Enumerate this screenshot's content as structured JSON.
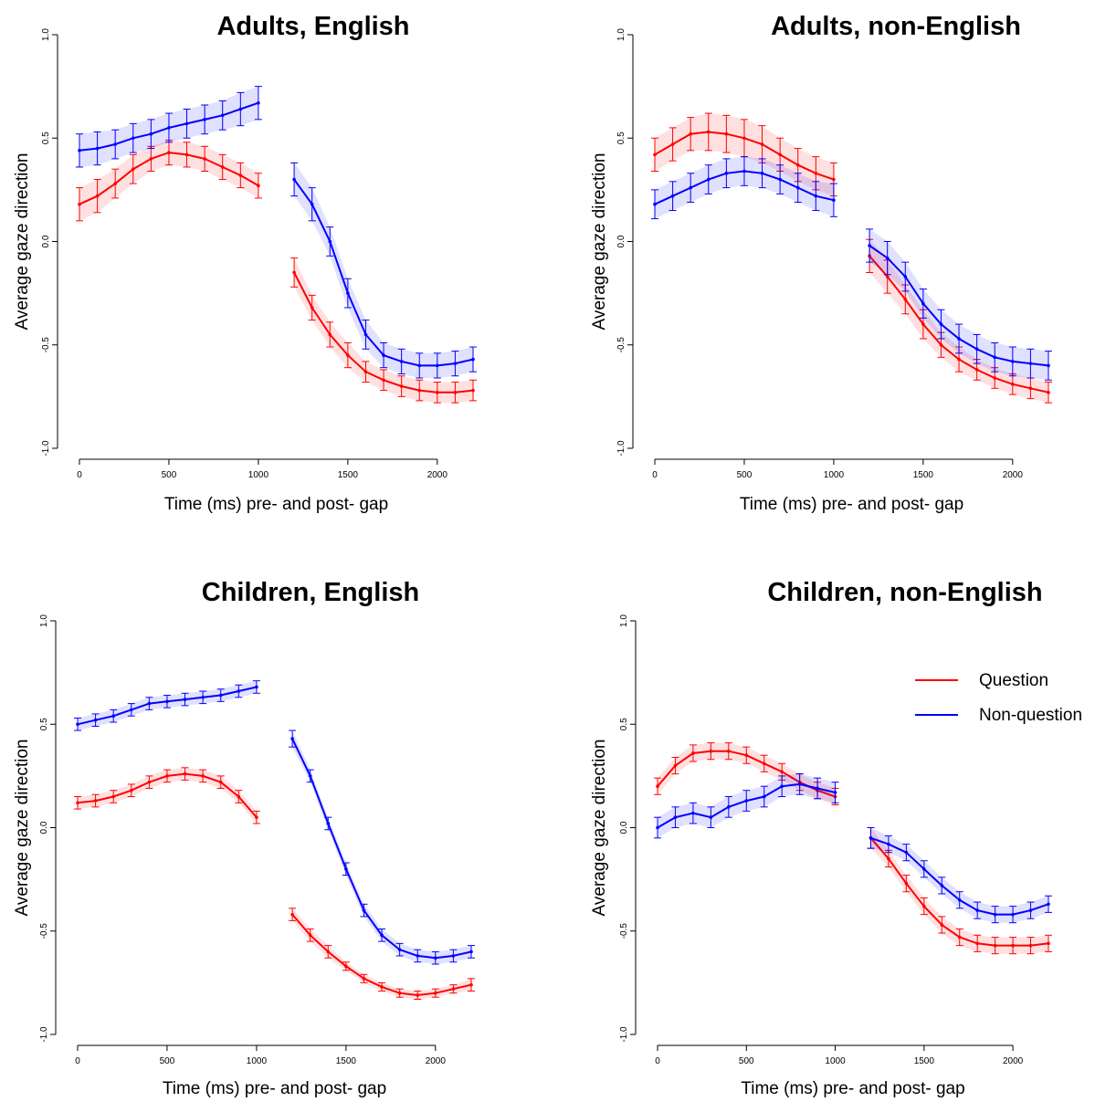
{
  "colors": {
    "question": "#ff0000",
    "non_question": "#0000ff"
  },
  "legend": {
    "items": [
      {
        "label": "Question",
        "color": "#ff0000"
      },
      {
        "label": "Non-question",
        "color": "#0000ff"
      }
    ]
  },
  "chart_data": [
    {
      "type": "line",
      "title": "Adults, English",
      "xlabel": "Time (ms) pre- and post- gap",
      "ylabel": "Average gaze direction",
      "xlim": [
        0,
        2200
      ],
      "ylim": [
        -1.0,
        1.0
      ],
      "xticks": [
        "0",
        "500",
        "1000",
        "1500",
        "2000"
      ],
      "yticks": [
        "-1.0",
        "-0.5",
        "0.0",
        "0.5",
        "1.0"
      ],
      "error_bars": true,
      "series": [
        {
          "name": "Question",
          "color": "#ff0000",
          "segments": [
            {
              "x": [
                0,
                100,
                200,
                300,
                400,
                500,
                600,
                700,
                800,
                900,
                1000
              ],
              "y": [
                0.18,
                0.22,
                0.28,
                0.35,
                0.4,
                0.43,
                0.42,
                0.4,
                0.36,
                0.32,
                0.27
              ],
              "err": [
                0.08,
                0.08,
                0.07,
                0.07,
                0.06,
                0.06,
                0.06,
                0.06,
                0.06,
                0.06,
                0.06
              ]
            },
            {
              "x": [
                1200,
                1300,
                1400,
                1500,
                1600,
                1700,
                1800,
                1900,
                2000,
                2100,
                2200
              ],
              "y": [
                -0.15,
                -0.32,
                -0.45,
                -0.55,
                -0.63,
                -0.67,
                -0.7,
                -0.72,
                -0.73,
                -0.73,
                -0.72
              ],
              "err": [
                0.07,
                0.06,
                0.06,
                0.06,
                0.05,
                0.05,
                0.05,
                0.05,
                0.05,
                0.05,
                0.05
              ]
            }
          ]
        },
        {
          "name": "Non-question",
          "color": "#0000ff",
          "segments": [
            {
              "x": [
                0,
                100,
                200,
                300,
                400,
                500,
                600,
                700,
                800,
                900,
                1000
              ],
              "y": [
                0.44,
                0.45,
                0.47,
                0.5,
                0.52,
                0.55,
                0.57,
                0.59,
                0.61,
                0.64,
                0.67
              ],
              "err": [
                0.08,
                0.08,
                0.07,
                0.07,
                0.07,
                0.07,
                0.07,
                0.07,
                0.07,
                0.08,
                0.08
              ]
            },
            {
              "x": [
                1200,
                1300,
                1400,
                1500,
                1600,
                1700,
                1800,
                1900,
                2000,
                2100,
                2200
              ],
              "y": [
                0.3,
                0.18,
                0.0,
                -0.25,
                -0.45,
                -0.55,
                -0.58,
                -0.6,
                -0.6,
                -0.59,
                -0.57
              ],
              "err": [
                0.08,
                0.08,
                0.07,
                0.07,
                0.07,
                0.06,
                0.06,
                0.06,
                0.06,
                0.06,
                0.06
              ]
            }
          ]
        }
      ]
    },
    {
      "type": "line",
      "title": "Adults, non-English",
      "xlabel": "Time (ms) pre- and post- gap",
      "ylabel": "Average gaze direction",
      "xlim": [
        0,
        2200
      ],
      "ylim": [
        -1.0,
        1.0
      ],
      "xticks": [
        "0",
        "500",
        "1000",
        "1500",
        "2000"
      ],
      "yticks": [
        "-1.0",
        "-0.5",
        "0.0",
        "0.5",
        "1.0"
      ],
      "error_bars": true,
      "series": [
        {
          "name": "Question",
          "color": "#ff0000",
          "segments": [
            {
              "x": [
                0,
                100,
                200,
                300,
                400,
                500,
                600,
                700,
                800,
                900,
                1000
              ],
              "y": [
                0.42,
                0.47,
                0.52,
                0.53,
                0.52,
                0.5,
                0.47,
                0.42,
                0.37,
                0.33,
                0.3
              ],
              "err": [
                0.08,
                0.08,
                0.08,
                0.09,
                0.09,
                0.09,
                0.09,
                0.08,
                0.08,
                0.08,
                0.08
              ]
            },
            {
              "x": [
                1200,
                1300,
                1400,
                1500,
                1600,
                1700,
                1800,
                1900,
                2000,
                2100,
                2200
              ],
              "y": [
                -0.07,
                -0.17,
                -0.28,
                -0.4,
                -0.5,
                -0.57,
                -0.62,
                -0.66,
                -0.69,
                -0.71,
                -0.73
              ],
              "err": [
                0.08,
                0.08,
                0.07,
                0.07,
                0.06,
                0.06,
                0.05,
                0.05,
                0.05,
                0.05,
                0.05
              ]
            }
          ]
        },
        {
          "name": "Non-question",
          "color": "#0000ff",
          "segments": [
            {
              "x": [
                0,
                100,
                200,
                300,
                400,
                500,
                600,
                700,
                800,
                900,
                1000
              ],
              "y": [
                0.18,
                0.22,
                0.26,
                0.3,
                0.33,
                0.34,
                0.33,
                0.3,
                0.26,
                0.22,
                0.2
              ],
              "err": [
                0.07,
                0.07,
                0.07,
                0.07,
                0.07,
                0.07,
                0.07,
                0.07,
                0.07,
                0.07,
                0.08
              ]
            },
            {
              "x": [
                1200,
                1300,
                1400,
                1500,
                1600,
                1700,
                1800,
                1900,
                2000,
                2100,
                2200
              ],
              "y": [
                -0.02,
                -0.08,
                -0.17,
                -0.3,
                -0.4,
                -0.47,
                -0.52,
                -0.56,
                -0.58,
                -0.59,
                -0.6
              ],
              "err": [
                0.08,
                0.08,
                0.07,
                0.07,
                0.07,
                0.07,
                0.07,
                0.07,
                0.07,
                0.07,
                0.07
              ]
            }
          ]
        }
      ]
    },
    {
      "type": "line",
      "title": "Children, English",
      "xlabel": "Time (ms) pre- and post- gap",
      "ylabel": "Average gaze direction",
      "xlim": [
        0,
        2200
      ],
      "ylim": [
        -1.0,
        1.0
      ],
      "xticks": [
        "0",
        "500",
        "1000",
        "1500",
        "2000"
      ],
      "yticks": [
        "-1.0",
        "-0.5",
        "0.0",
        "0.5",
        "1.0"
      ],
      "error_bars": true,
      "series": [
        {
          "name": "Question",
          "color": "#ff0000",
          "segments": [
            {
              "x": [
                0,
                100,
                200,
                300,
                400,
                500,
                600,
                700,
                800,
                900,
                1000
              ],
              "y": [
                0.12,
                0.13,
                0.15,
                0.18,
                0.22,
                0.25,
                0.26,
                0.25,
                0.22,
                0.15,
                0.05
              ],
              "err": [
                0.03,
                0.03,
                0.03,
                0.03,
                0.03,
                0.03,
                0.03,
                0.03,
                0.03,
                0.03,
                0.03
              ]
            },
            {
              "x": [
                1200,
                1300,
                1400,
                1500,
                1600,
                1700,
                1800,
                1900,
                2000,
                2100,
                2200
              ],
              "y": [
                -0.42,
                -0.52,
                -0.6,
                -0.67,
                -0.73,
                -0.77,
                -0.8,
                -0.81,
                -0.8,
                -0.78,
                -0.76
              ],
              "err": [
                0.03,
                0.03,
                0.03,
                0.02,
                0.02,
                0.02,
                0.02,
                0.02,
                0.02,
                0.02,
                0.03
              ]
            }
          ]
        },
        {
          "name": "Non-question",
          "color": "#0000ff",
          "segments": [
            {
              "x": [
                0,
                100,
                200,
                300,
                400,
                500,
                600,
                700,
                800,
                900,
                1000
              ],
              "y": [
                0.5,
                0.52,
                0.54,
                0.57,
                0.6,
                0.61,
                0.62,
                0.63,
                0.64,
                0.66,
                0.68
              ],
              "err": [
                0.03,
                0.03,
                0.03,
                0.03,
                0.03,
                0.03,
                0.03,
                0.03,
                0.03,
                0.03,
                0.03
              ]
            },
            {
              "x": [
                1200,
                1300,
                1400,
                1500,
                1600,
                1700,
                1800,
                1900,
                2000,
                2100,
                2200
              ],
              "y": [
                0.43,
                0.25,
                0.02,
                -0.2,
                -0.4,
                -0.52,
                -0.59,
                -0.62,
                -0.63,
                -0.62,
                -0.6
              ],
              "err": [
                0.04,
                0.03,
                0.03,
                0.03,
                0.03,
                0.03,
                0.03,
                0.03,
                0.03,
                0.03,
                0.03
              ]
            }
          ]
        }
      ]
    },
    {
      "type": "line",
      "title": "Children, non-English",
      "xlabel": "Time (ms) pre- and post- gap",
      "ylabel": "Average gaze direction",
      "xlim": [
        0,
        2200
      ],
      "ylim": [
        -1.0,
        1.0
      ],
      "xticks": [
        "0",
        "500",
        "1000",
        "1500",
        "2000"
      ],
      "yticks": [
        "-1.0",
        "-0.5",
        "0.0",
        "0.5",
        "1.0"
      ],
      "error_bars": true,
      "legend_position": "top-right",
      "series": [
        {
          "name": "Question",
          "color": "#ff0000",
          "segments": [
            {
              "x": [
                0,
                100,
                200,
                300,
                400,
                500,
                600,
                700,
                800,
                900,
                1000
              ],
              "y": [
                0.2,
                0.3,
                0.36,
                0.37,
                0.37,
                0.35,
                0.31,
                0.27,
                0.22,
                0.18,
                0.15
              ],
              "err": [
                0.04,
                0.04,
                0.04,
                0.04,
                0.04,
                0.04,
                0.04,
                0.04,
                0.04,
                0.04,
                0.04
              ]
            },
            {
              "x": [
                1200,
                1300,
                1400,
                1500,
                1600,
                1700,
                1800,
                1900,
                2000,
                2100,
                2200
              ],
              "y": [
                -0.05,
                -0.15,
                -0.27,
                -0.38,
                -0.47,
                -0.53,
                -0.56,
                -0.57,
                -0.57,
                -0.57,
                -0.56
              ],
              "err": [
                0.05,
                0.04,
                0.04,
                0.04,
                0.04,
                0.04,
                0.04,
                0.04,
                0.04,
                0.04,
                0.04
              ]
            }
          ]
        },
        {
          "name": "Non-question",
          "color": "#0000ff",
          "segments": [
            {
              "x": [
                0,
                100,
                200,
                300,
                400,
                500,
                600,
                700,
                800,
                900,
                1000
              ],
              "y": [
                0.0,
                0.05,
                0.07,
                0.05,
                0.1,
                0.13,
                0.15,
                0.2,
                0.21,
                0.19,
                0.17
              ],
              "err": [
                0.05,
                0.05,
                0.05,
                0.05,
                0.05,
                0.05,
                0.05,
                0.05,
                0.05,
                0.05,
                0.05
              ]
            },
            {
              "x": [
                1200,
                1300,
                1400,
                1500,
                1600,
                1700,
                1800,
                1900,
                2000,
                2100,
                2200
              ],
              "y": [
                -0.05,
                -0.08,
                -0.12,
                -0.2,
                -0.28,
                -0.35,
                -0.4,
                -0.42,
                -0.42,
                -0.4,
                -0.37
              ],
              "err": [
                0.05,
                0.04,
                0.04,
                0.04,
                0.04,
                0.04,
                0.04,
                0.04,
                0.04,
                0.04,
                0.04
              ]
            }
          ]
        }
      ]
    }
  ]
}
